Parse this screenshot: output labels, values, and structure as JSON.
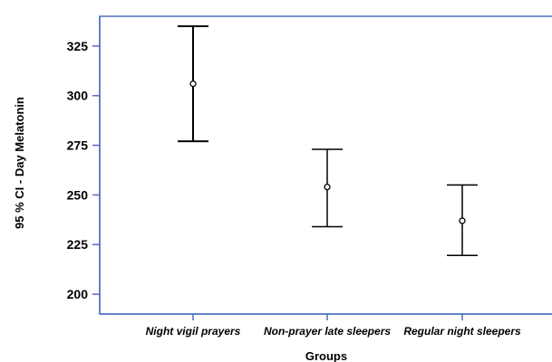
{
  "chart_data": {
    "type": "errorbar",
    "title": "",
    "xlabel": "Groups",
    "ylabel": "95 % CI - Day Melatonin",
    "ylim": [
      190,
      340
    ],
    "yticks": [
      200,
      225,
      250,
      275,
      300,
      325
    ],
    "grid": false,
    "frame_color": "#4f6fbf",
    "mark_color": "#000000",
    "categories": [
      "Night vigil prayers",
      "Non-prayer late sleepers",
      "Regular night sleepers"
    ],
    "series": [
      {
        "mean": [
          306,
          254,
          237
        ],
        "lower": [
          277,
          234,
          219.5
        ],
        "upper": [
          335,
          273,
          255
        ]
      }
    ]
  }
}
